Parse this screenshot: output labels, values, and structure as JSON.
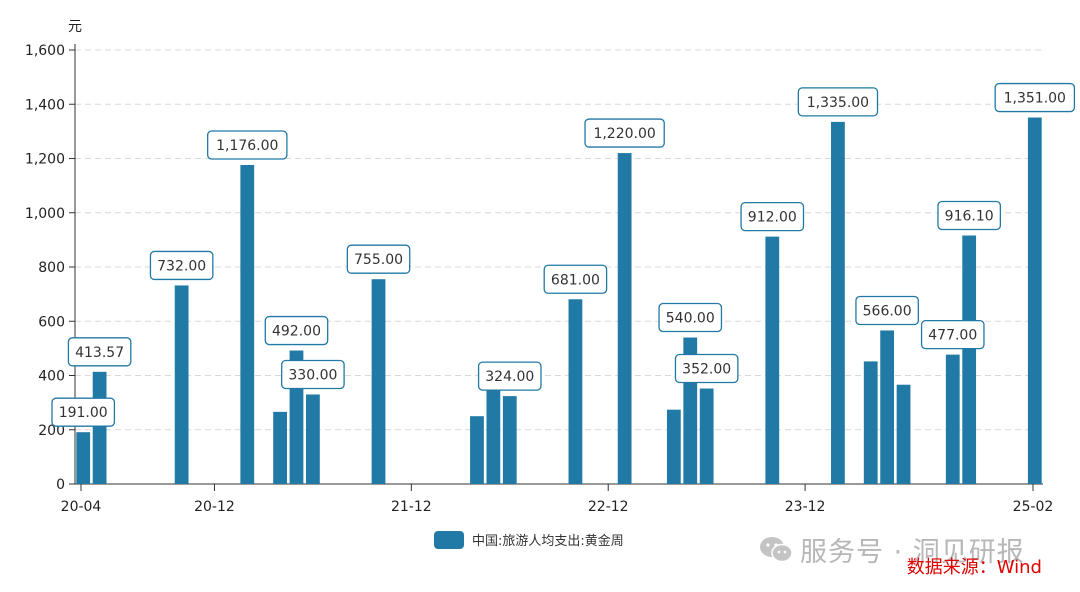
{
  "chart_data": {
    "type": "bar",
    "ylabel": "元",
    "ylim": [
      0,
      1600
    ],
    "yticks": [
      "0",
      "200",
      "400",
      "600",
      "800",
      "1,000",
      "1,200",
      "1,400",
      "1,600"
    ],
    "xtick_labels": [
      "20-04",
      "20-12",
      "21-12",
      "22-12",
      "23-12",
      "25-02"
    ],
    "grid": true,
    "legend_position": "bottom-center",
    "series": [
      {
        "name": "中国:旅游人均支出:黄金周",
        "color": "#2179a5",
        "points": [
          {
            "x": "2020-04",
            "y": 191.0,
            "label": "191.00"
          },
          {
            "x": "2020-05",
            "y": 413.57,
            "label": "413.57"
          },
          {
            "x": "2020-10",
            "y": 732.0,
            "label": "732.00"
          },
          {
            "x": "2021-02",
            "y": 1176.0,
            "label": "1,176.00"
          },
          {
            "x": "2021-04",
            "y": 266.0
          },
          {
            "x": "2021-05",
            "y": 492.0,
            "label": "492.00"
          },
          {
            "x": "2021-06",
            "y": 330.0,
            "label": "330.00"
          },
          {
            "x": "2021-10",
            "y": 755.0,
            "label": "755.00"
          },
          {
            "x": "2022-04",
            "y": 250.0
          },
          {
            "x": "2022-05",
            "y": 355.0
          },
          {
            "x": "2022-06",
            "y": 324.0,
            "label": "324.00"
          },
          {
            "x": "2022-10",
            "y": 681.0,
            "label": "681.00"
          },
          {
            "x": "2023-01",
            "y": 1220.0,
            "label": "1,220.00"
          },
          {
            "x": "2023-04",
            "y": 274.0
          },
          {
            "x": "2023-05",
            "y": 540.0,
            "label": "540.00"
          },
          {
            "x": "2023-06",
            "y": 352.0,
            "label": "352.00"
          },
          {
            "x": "2023-10",
            "y": 912.0,
            "label": "912.00"
          },
          {
            "x": "2024-02",
            "y": 1335.0,
            "label": "1,335.00"
          },
          {
            "x": "2024-04",
            "y": 452.0
          },
          {
            "x": "2024-05",
            "y": 566.0,
            "label": "566.00"
          },
          {
            "x": "2024-06",
            "y": 366.0
          },
          {
            "x": "2024-09",
            "y": 477.0,
            "label": "477.00"
          },
          {
            "x": "2024-10",
            "y": 916.1,
            "label": "916.10"
          },
          {
            "x": "2025-02",
            "y": 1351.0,
            "label": "1,351.00"
          }
        ]
      }
    ]
  },
  "legend": {
    "label": "中国:旅游人均支出:黄金周",
    "color": "#2179a5"
  },
  "watermark": {
    "text": "服务号 · 洞见研报",
    "icon": "wechat-icon"
  },
  "source": {
    "text": "数据来源：Wind",
    "color": "#e00000"
  }
}
